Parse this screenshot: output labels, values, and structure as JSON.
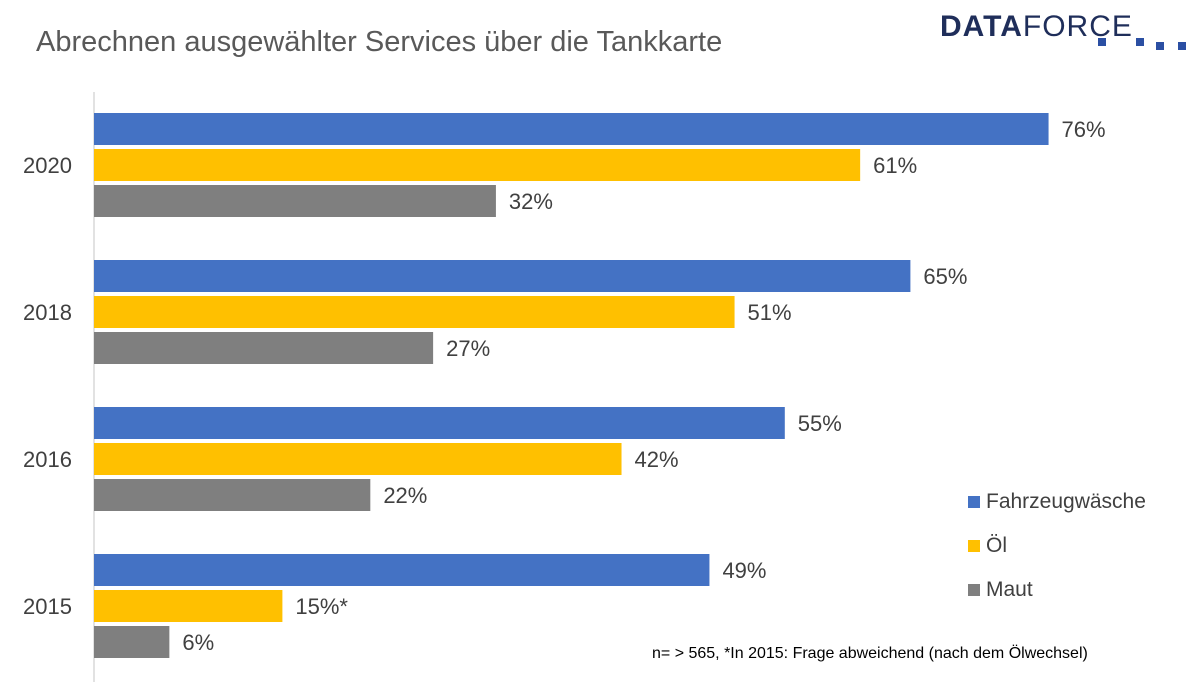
{
  "logo": {
    "bold": "DATA",
    "light": "FORCE"
  },
  "footnote": "n= > 565, *In 2015: Frage abweichend (nach dem Ölwechsel)",
  "chart_data": {
    "type": "bar",
    "orientation": "horizontal",
    "title": "Abrechnen ausgewählter Services über die Tankkarte",
    "categories": [
      "2020",
      "2018",
      "2016",
      "2015"
    ],
    "series": [
      {
        "name": "Fahrzeugwäsche",
        "color": "#4472c4",
        "values": [
          76,
          65,
          55,
          49
        ],
        "labels": [
          "76%",
          "65%",
          "55%",
          "49%"
        ]
      },
      {
        "name": "Öl",
        "color": "#ffc000",
        "values": [
          61,
          51,
          42,
          15
        ],
        "labels": [
          "61%",
          "51%",
          "42%",
          "15%*"
        ]
      },
      {
        "name": "Maut",
        "color": "#7f7f7f",
        "values": [
          32,
          27,
          22,
          6
        ],
        "labels": [
          "32%",
          "27%",
          "22%",
          "6%"
        ]
      }
    ],
    "xlim": [
      0,
      100
    ],
    "unit": "%",
    "grid": false,
    "legend_position": "right"
  }
}
